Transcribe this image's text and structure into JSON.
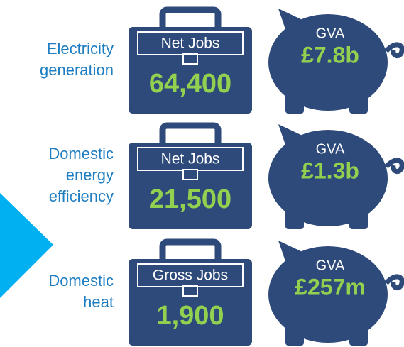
{
  "rows": [
    {
      "label_lines": [
        "Electricity",
        "generation"
      ],
      "jobs_label": "Net Jobs",
      "jobs_value": "64,400",
      "gva_label": "GVA",
      "gva_value": "£7.8b"
    },
    {
      "label_lines": [
        "Domestic",
        "energy",
        "efficiency"
      ],
      "jobs_label": "Net Jobs",
      "jobs_value": "21,500",
      "gva_label": "GVA",
      "gva_value": "£1.3b"
    },
    {
      "label_lines": [
        "Domestic",
        "heat"
      ],
      "jobs_label": "Gross Jobs",
      "jobs_value": "1,900",
      "gva_label": "GVA",
      "gva_value": "£257m"
    }
  ]
}
